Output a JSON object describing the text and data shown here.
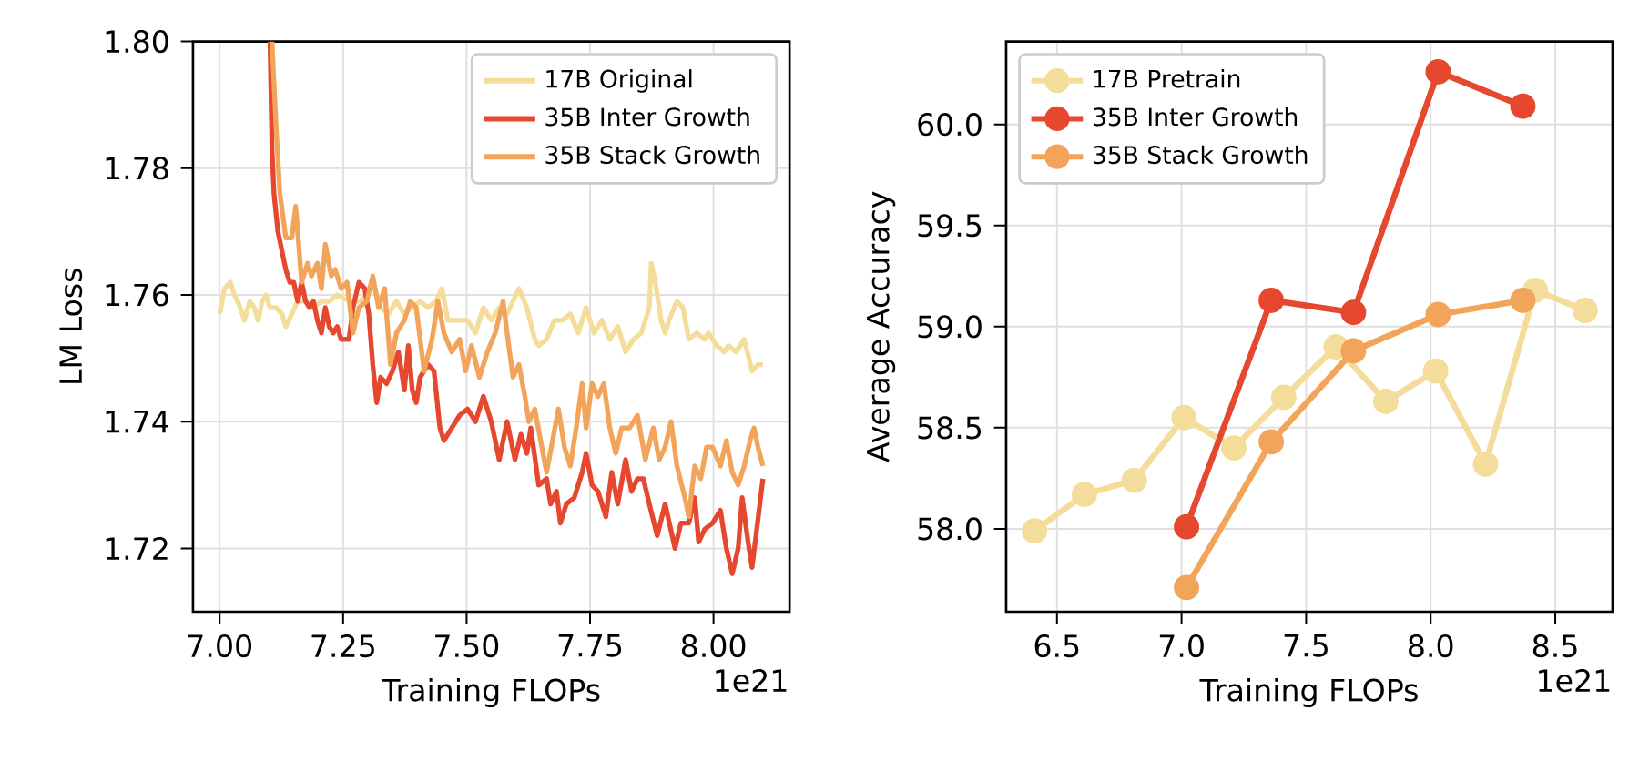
{
  "chart_data": [
    {
      "type": "line",
      "xlabel": "Training FLOPs",
      "ylabel": "LM Loss",
      "annotations": [
        "1e21"
      ],
      "xlim": [
        6.946,
        8.154
      ],
      "ylim": [
        1.71,
        1.8
      ],
      "xticks": [
        {
          "value": 7,
          "label": "7.00"
        },
        {
          "value": 7.25,
          "label": "7.25"
        },
        {
          "value": 7.5,
          "label": "7.50"
        },
        {
          "value": 7.75,
          "label": "7.75"
        },
        {
          "value": 8,
          "label": "8.00"
        }
      ],
      "yticks": [
        1.72,
        1.74,
        1.76,
        1.78,
        {
          "value": 1.8,
          "label": "1.80"
        }
      ],
      "grid": true,
      "legend": "top right",
      "marker": "none",
      "series": [
        {
          "name": "17B Original",
          "color": "#f4dc9a",
          "x": [
            7.0,
            7.01,
            7.022,
            7.03,
            7.042,
            7.05,
            7.061,
            7.07,
            7.078,
            7.086,
            7.094,
            7.102,
            7.114,
            7.126,
            7.134,
            7.146,
            7.158,
            7.174,
            7.19,
            7.206,
            7.222,
            7.238,
            7.262,
            7.286,
            7.31,
            7.326,
            7.342,
            7.358,
            7.374,
            7.39,
            7.406,
            7.422,
            7.438,
            7.45,
            7.462,
            7.486,
            7.502,
            7.518,
            7.534,
            7.55,
            7.566,
            7.582,
            7.606,
            7.622,
            7.638,
            7.646,
            7.662,
            7.678,
            7.694,
            7.71,
            7.726,
            7.742,
            7.758,
            7.774,
            7.79,
            7.806,
            7.822,
            7.838,
            7.854,
            7.87,
            7.874,
            7.882,
            7.894,
            7.902,
            7.91,
            7.926,
            7.938,
            7.95,
            7.966,
            7.982,
            7.99,
            8.006,
            8.022,
            8.03,
            8.046,
            8.062,
            8.078,
            8.09,
            8.1
          ],
          "values": [
            1.757,
            1.761,
            1.762,
            1.76,
            1.758,
            1.756,
            1.759,
            1.758,
            1.756,
            1.759,
            1.76,
            1.758,
            1.758,
            1.757,
            1.755,
            1.757,
            1.759,
            1.759,
            1.758,
            1.759,
            1.759,
            1.76,
            1.759,
            1.759,
            1.762,
            1.758,
            1.757,
            1.759,
            1.757,
            1.758,
            1.759,
            1.758,
            1.759,
            1.761,
            1.756,
            1.756,
            1.756,
            1.754,
            1.758,
            1.756,
            1.758,
            1.757,
            1.761,
            1.758,
            1.753,
            1.752,
            1.753,
            1.756,
            1.756,
            1.757,
            1.754,
            1.758,
            1.754,
            1.756,
            1.753,
            1.755,
            1.751,
            1.753,
            1.754,
            1.758,
            1.765,
            1.762,
            1.756,
            1.754,
            1.756,
            1.759,
            1.758,
            1.753,
            1.754,
            1.753,
            1.754,
            1.752,
            1.751,
            1.752,
            1.751,
            1.753,
            1.748,
            1.749,
            1.749
          ]
        },
        {
          "name": "35B Inter Growth",
          "color": "#e5472f",
          "x": [
            7.102,
            7.106,
            7.11,
            7.118,
            7.126,
            7.134,
            7.142,
            7.15,
            7.158,
            7.166,
            7.174,
            7.182,
            7.19,
            7.198,
            7.206,
            7.214,
            7.222,
            7.23,
            7.238,
            7.246,
            7.262,
            7.27,
            7.282,
            7.294,
            7.302,
            7.31,
            7.318,
            7.326,
            7.338,
            7.35,
            7.362,
            7.374,
            7.382,
            7.39,
            7.398,
            7.406,
            7.422,
            7.434,
            7.446,
            7.454,
            7.47,
            7.486,
            7.502,
            7.518,
            7.534,
            7.55,
            7.566,
            7.582,
            7.598,
            7.61,
            7.622,
            7.63,
            7.646,
            7.662,
            7.67,
            7.682,
            7.69,
            7.702,
            7.718,
            7.734,
            7.742,
            7.754,
            7.766,
            7.782,
            7.794,
            7.806,
            7.822,
            7.834,
            7.846,
            7.858,
            7.87,
            7.886,
            7.902,
            7.922,
            7.934,
            7.95,
            7.962,
            7.97,
            7.982,
            7.998,
            8.014,
            8.026,
            8.038,
            8.05,
            8.058,
            8.07,
            8.078,
            8.086,
            8.1
          ],
          "values": [
            1.8,
            1.783,
            1.776,
            1.77,
            1.767,
            1.764,
            1.762,
            1.762,
            1.759,
            1.762,
            1.759,
            1.758,
            1.759,
            1.756,
            1.754,
            1.758,
            1.755,
            1.754,
            1.755,
            1.753,
            1.753,
            1.758,
            1.762,
            1.761,
            1.757,
            1.749,
            1.743,
            1.747,
            1.746,
            1.748,
            1.751,
            1.745,
            1.752,
            1.745,
            1.743,
            1.747,
            1.749,
            1.748,
            1.739,
            1.737,
            1.739,
            1.741,
            1.742,
            1.74,
            1.744,
            1.74,
            1.734,
            1.74,
            1.734,
            1.738,
            1.735,
            1.739,
            1.73,
            1.731,
            1.727,
            1.729,
            1.724,
            1.727,
            1.728,
            1.732,
            1.735,
            1.73,
            1.729,
            1.725,
            1.732,
            1.727,
            1.734,
            1.729,
            1.731,
            1.731,
            1.727,
            1.722,
            1.727,
            1.72,
            1.724,
            1.724,
            1.728,
            1.721,
            1.723,
            1.724,
            1.726,
            1.72,
            1.716,
            1.72,
            1.728,
            1.721,
            1.717,
            1.722,
            1.731
          ]
        },
        {
          "name": "35B Stack Growth",
          "color": "#f2a55a",
          "x": [
            7.106,
            7.114,
            7.122,
            7.134,
            7.146,
            7.154,
            7.166,
            7.178,
            7.186,
            7.198,
            7.206,
            7.214,
            7.226,
            7.234,
            7.246,
            7.258,
            7.27,
            7.282,
            7.298,
            7.31,
            7.322,
            7.334,
            7.346,
            7.358,
            7.374,
            7.386,
            7.398,
            7.414,
            7.43,
            7.442,
            7.454,
            7.47,
            7.486,
            7.498,
            7.51,
            7.526,
            7.542,
            7.558,
            7.574,
            7.582,
            7.594,
            7.606,
            7.618,
            7.626,
            7.638,
            7.65,
            7.662,
            7.674,
            7.686,
            7.698,
            7.71,
            7.722,
            7.734,
            7.742,
            7.754,
            7.766,
            7.778,
            7.79,
            7.802,
            7.814,
            7.83,
            7.846,
            7.862,
            7.878,
            7.89,
            7.902,
            7.914,
            7.926,
            7.942,
            7.95,
            7.962,
            7.974,
            7.986,
            7.998,
            8.014,
            8.026,
            8.038,
            8.05,
            8.062,
            8.074,
            8.082,
            8.09,
            8.1
          ],
          "values": [
            1.8,
            1.787,
            1.776,
            1.769,
            1.769,
            1.774,
            1.762,
            1.765,
            1.763,
            1.765,
            1.761,
            1.768,
            1.763,
            1.764,
            1.761,
            1.762,
            1.754,
            1.758,
            1.759,
            1.763,
            1.758,
            1.761,
            1.749,
            1.754,
            1.756,
            1.759,
            1.758,
            1.748,
            1.753,
            1.759,
            1.754,
            1.751,
            1.753,
            1.748,
            1.752,
            1.747,
            1.751,
            1.754,
            1.759,
            1.754,
            1.747,
            1.749,
            1.744,
            1.74,
            1.742,
            1.737,
            1.732,
            1.737,
            1.742,
            1.736,
            1.733,
            1.739,
            1.746,
            1.739,
            1.746,
            1.744,
            1.746,
            1.739,
            1.735,
            1.739,
            1.739,
            1.741,
            1.734,
            1.739,
            1.734,
            1.736,
            1.74,
            1.733,
            1.728,
            1.725,
            1.733,
            1.731,
            1.736,
            1.736,
            1.733,
            1.737,
            1.732,
            1.73,
            1.733,
            1.737,
            1.739,
            1.736,
            1.733
          ]
        }
      ]
    },
    {
      "type": "line",
      "xlabel": "Training FLOPs",
      "ylabel": "Average Accuracy",
      "annotations": [
        "1e21"
      ],
      "xlim": [
        6.296,
        8.73
      ],
      "ylim": [
        57.59,
        60.41
      ],
      "xticks": [
        6.5,
        {
          "value": 7,
          "label": "7.0"
        },
        7.5,
        {
          "value": 8,
          "label": "8.0"
        },
        8.5
      ],
      "yticks": [
        {
          "value": 58,
          "label": "58.0"
        },
        58.5,
        {
          "value": 59,
          "label": "59.0"
        },
        59.5,
        {
          "value": 60,
          "label": "60.0"
        }
      ],
      "grid": true,
      "legend": "top left",
      "marker": "circle",
      "series": [
        {
          "name": "17B Pretrain",
          "color": "#f4dc9a",
          "x": [
            6.41,
            6.61,
            6.81,
            7.01,
            7.21,
            7.41,
            7.62,
            7.82,
            8.02,
            8.22,
            8.42,
            8.62
          ],
          "values": [
            57.99,
            58.17,
            58.24,
            58.55,
            58.4,
            58.65,
            58.9,
            58.63,
            58.78,
            58.32,
            59.18,
            59.08
          ]
        },
        {
          "name": "35B Inter Growth",
          "color": "#e5472f",
          "x": [
            7.02,
            7.36,
            7.69,
            8.03,
            8.37
          ],
          "values": [
            58.01,
            59.13,
            59.07,
            60.26,
            60.09
          ]
        },
        {
          "name": "35B Stack Growth",
          "color": "#f2a55a",
          "x": [
            7.02,
            7.36,
            7.69,
            8.03,
            8.37
          ],
          "values": [
            57.71,
            58.43,
            58.88,
            59.06,
            59.13
          ]
        }
      ]
    }
  ]
}
